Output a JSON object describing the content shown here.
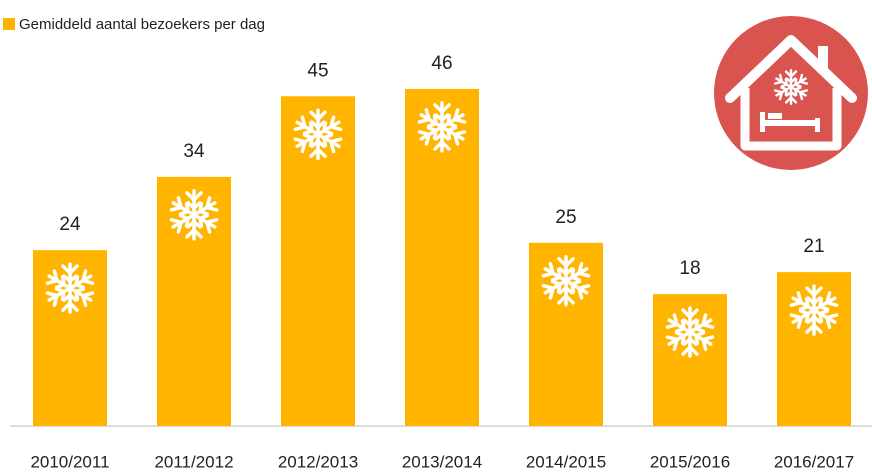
{
  "chart_data": {
    "type": "bar",
    "series": [
      {
        "name": "Gemiddeld aantal bezoekers per dag",
        "color": "#ffb400",
        "values": [
          24,
          34,
          45,
          46,
          25,
          18,
          21
        ]
      }
    ],
    "categories": [
      "2010/2011",
      "2011/2012",
      "2012/2013",
      "2013/2014",
      "2014/2015",
      "2015/2016",
      "2016/2017"
    ],
    "ylim": [
      0,
      58
    ]
  }
}
